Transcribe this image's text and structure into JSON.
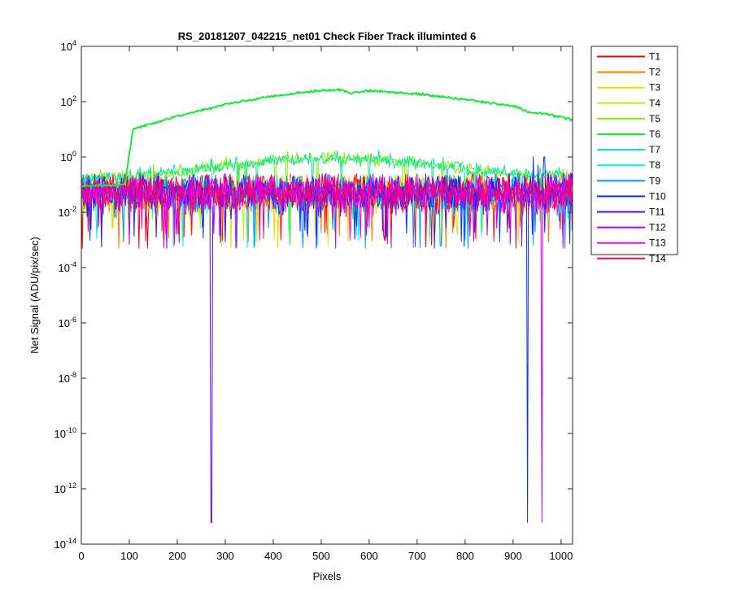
{
  "chart_data": {
    "type": "line",
    "title": "RS_20181207_042215_net01   Check Fiber     Track illuminted 6",
    "xlabel": "Pixels",
    "ylabel": "Net Signal (ADU/pix/sec)",
    "xlim": [
      0,
      1024
    ],
    "ylim_exponent": [
      -14,
      4
    ],
    "y_scale": "log",
    "x_ticks": [
      "0",
      "100",
      "200",
      "300",
      "400",
      "500",
      "600",
      "700",
      "800",
      "900",
      "1000"
    ],
    "y_tick_exponents": [
      "4",
      "2",
      "0",
      "-2",
      "-4",
      "-6",
      "-8",
      "-10",
      "-12",
      "-14"
    ],
    "y_tick_base": "10",
    "legend_position": "outside-top-right",
    "grid": false,
    "series": [
      {
        "name": "T1",
        "color": "#ff0000"
      },
      {
        "name": "T2",
        "color": "#ff7a00"
      },
      {
        "name": "T3",
        "color": "#ffd700"
      },
      {
        "name": "T4",
        "color": "#c8f000"
      },
      {
        "name": "T5",
        "color": "#7ef000"
      },
      {
        "name": "T6",
        "color": "#1ee63c"
      },
      {
        "name": "T7",
        "color": "#00e8a0"
      },
      {
        "name": "T8",
        "color": "#00f0f0"
      },
      {
        "name": "T9",
        "color": "#0096ff"
      },
      {
        "name": "T10",
        "color": "#0033ff"
      },
      {
        "name": "T11",
        "color": "#4a10e6"
      },
      {
        "name": "T12",
        "color": "#b400ff"
      },
      {
        "name": "T13",
        "color": "#ff00d2"
      },
      {
        "name": "T14",
        "color": "#ff0064"
      }
    ],
    "illuminated_track": {
      "name": "T6",
      "points": [
        [
          0,
          0.09
        ],
        [
          90,
          0.1
        ],
        [
          108,
          10
        ],
        [
          200,
          30
        ],
        [
          300,
          80
        ],
        [
          400,
          160
        ],
        [
          500,
          250
        ],
        [
          545,
          270
        ],
        [
          560,
          200
        ],
        [
          600,
          250
        ],
        [
          700,
          190
        ],
        [
          800,
          120
        ],
        [
          900,
          70
        ],
        [
          935,
          40
        ],
        [
          960,
          38
        ],
        [
          1000,
          28
        ],
        [
          1024,
          22
        ]
      ]
    },
    "secondary_hump": {
      "series": [
        "T5",
        "T7"
      ],
      "points": [
        [
          0,
          0.15
        ],
        [
          100,
          0.2
        ],
        [
          200,
          0.3
        ],
        [
          300,
          0.5
        ],
        [
          400,
          0.75
        ],
        [
          500,
          0.9
        ],
        [
          600,
          0.85
        ],
        [
          700,
          0.6
        ],
        [
          800,
          0.4
        ],
        [
          900,
          0.25
        ],
        [
          1024,
          0.18
        ]
      ]
    },
    "dropouts": [
      {
        "series": "T11",
        "x": 271,
        "y": 6e-14
      },
      {
        "series": "T10",
        "x": 930,
        "y": 6e-14
      },
      {
        "series": "T12",
        "x": 960,
        "y": 6e-14
      }
    ],
    "spikes": [
      {
        "series": "T10",
        "x": 942,
        "y": 1.0
      },
      {
        "series": "T10",
        "x": 965,
        "y": 1.0
      },
      {
        "series": "T10",
        "x": 952,
        "y": 0.5
      }
    ],
    "noise_band": {
      "median": 0.05,
      "upper": 0.2,
      "lower": 0.0005
    }
  }
}
